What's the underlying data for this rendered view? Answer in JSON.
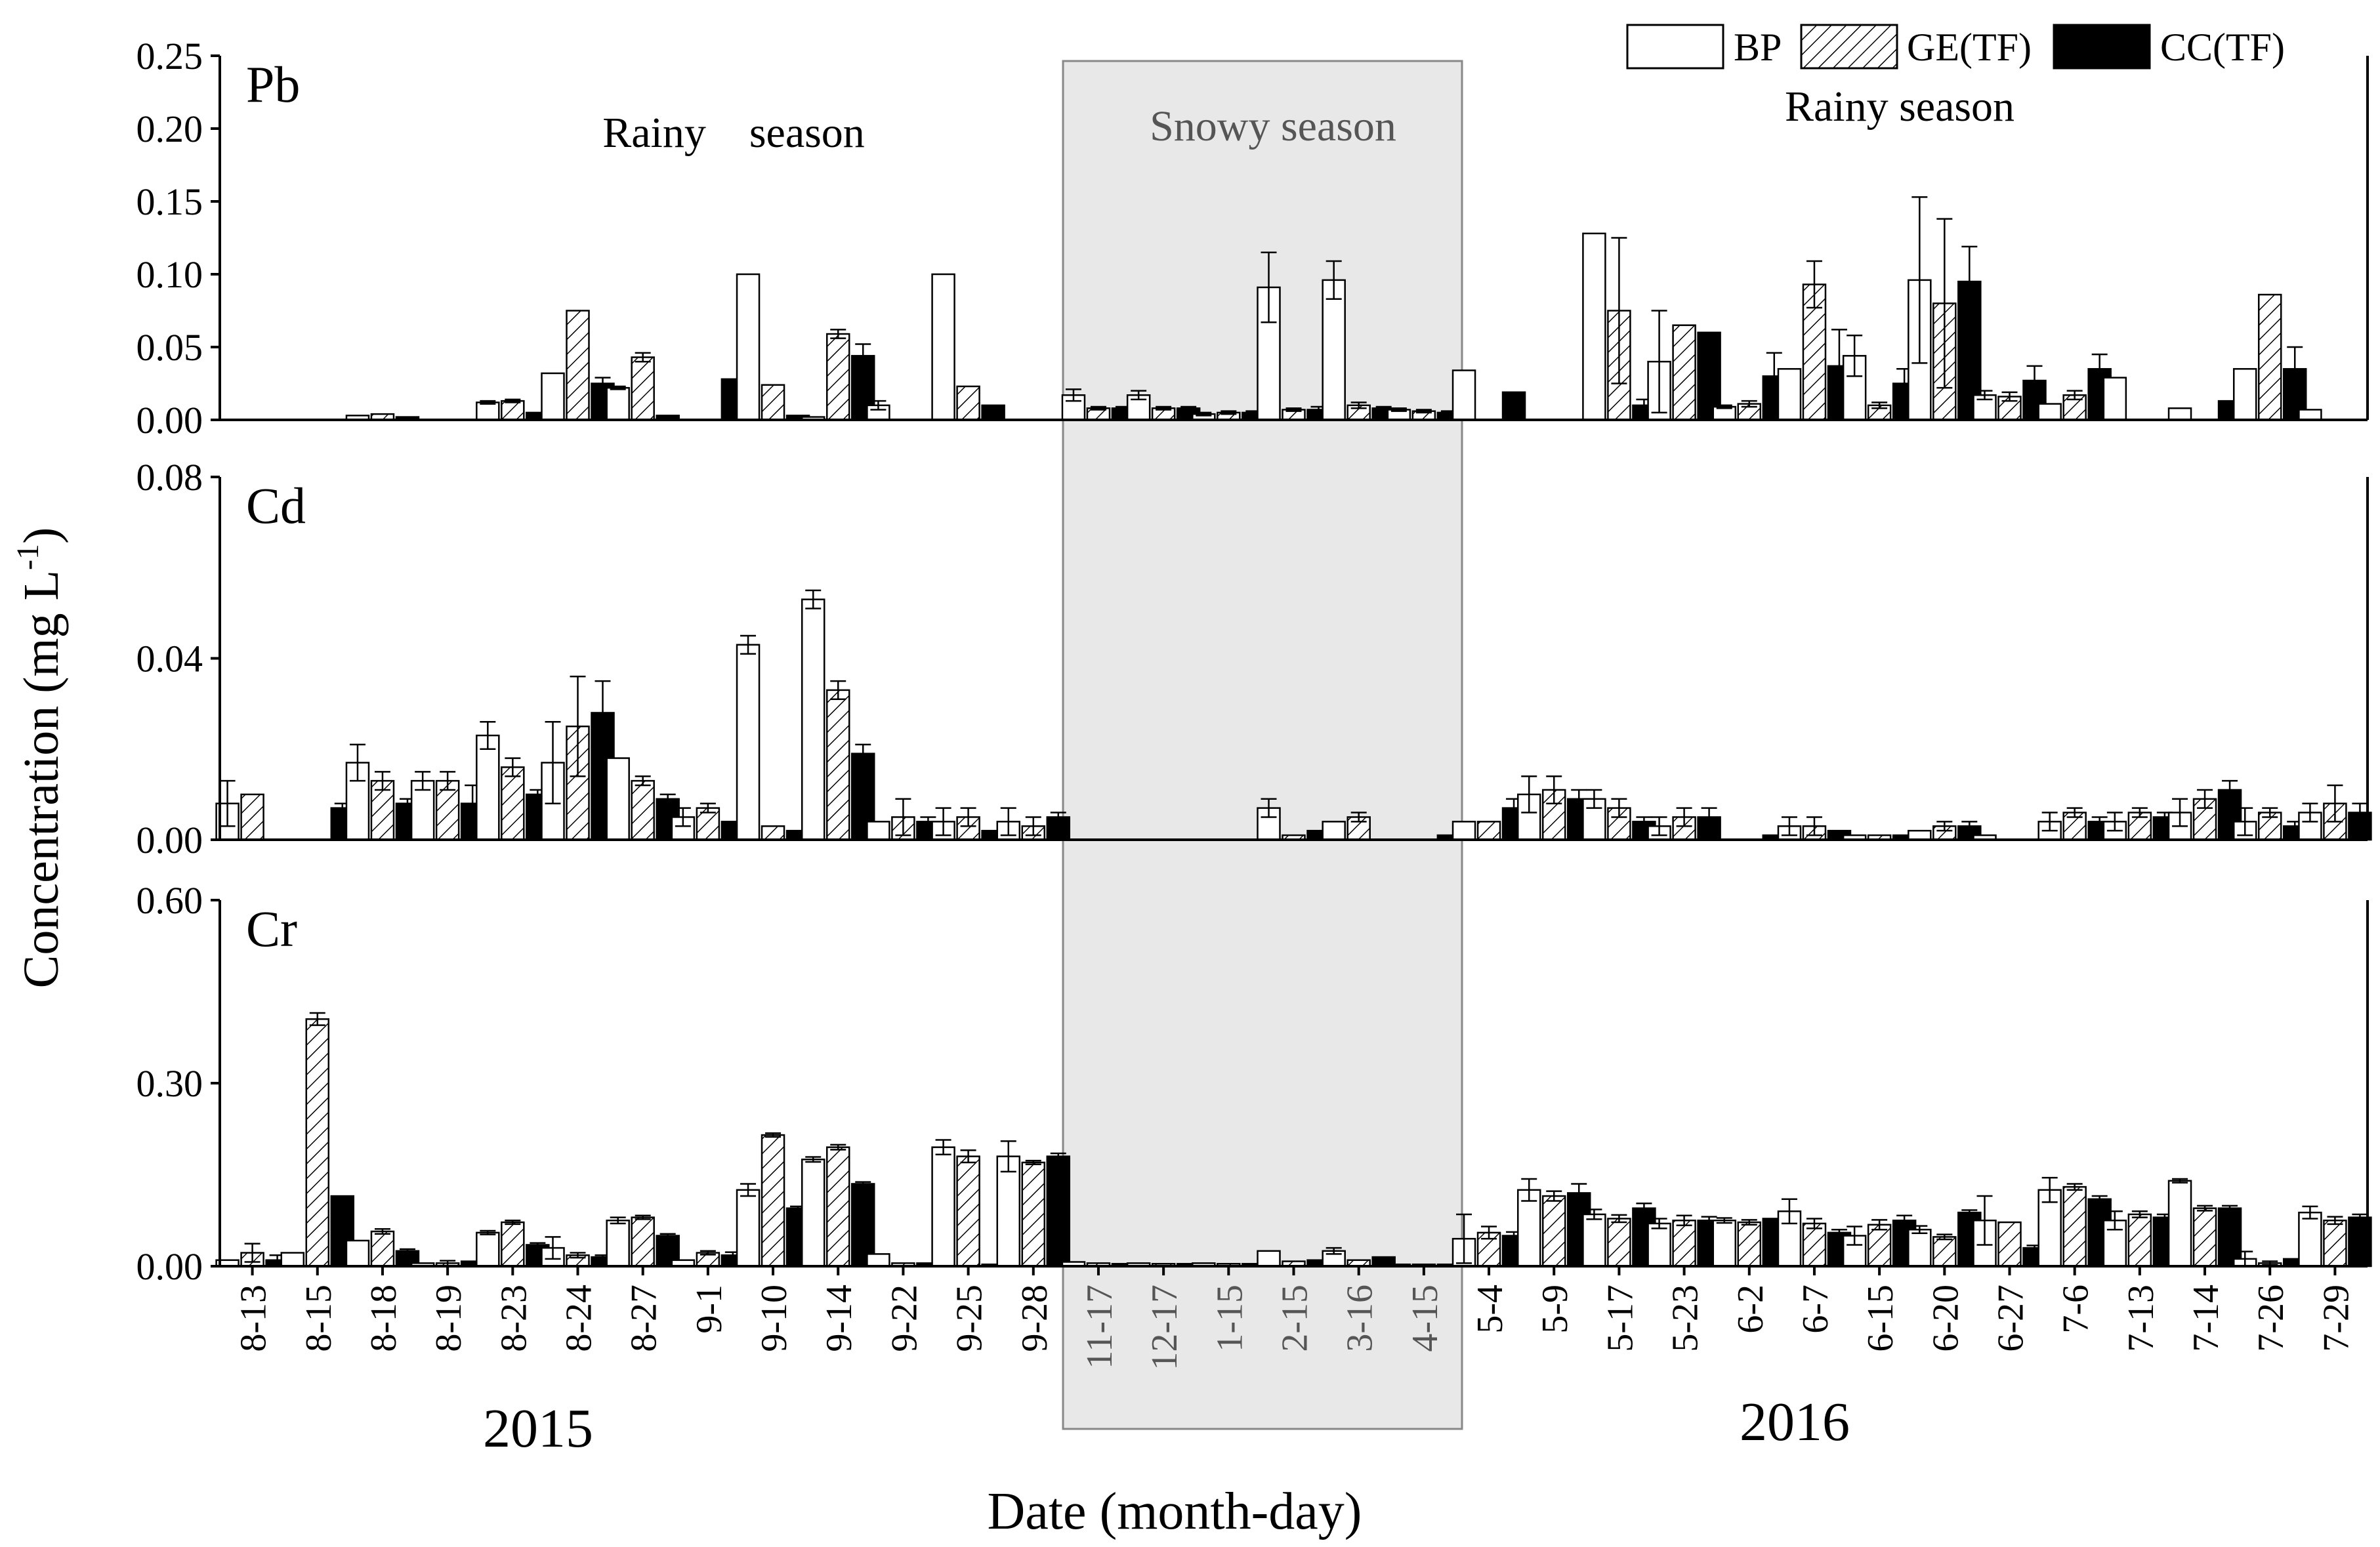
{
  "chart_data": {
    "type": "bar",
    "figure": {
      "ylabel": "Concentration (mg L",
      "ylabel_sup": "-1",
      "ylabel_end": ")",
      "xlabel": "Date (month-day)",
      "year_labels": [
        "2015",
        "2016"
      ],
      "season_labels": {
        "rainy_2015": "Rainy    season",
        "snowy": "Snowy season",
        "rainy_2016": "Rainy season"
      }
    },
    "categories": [
      "8-13",
      "8-15",
      "8-18",
      "8-19",
      "8-23",
      "8-24",
      "8-27",
      "9-1",
      "9-10",
      "9-14",
      "9-22",
      "9-25",
      "9-28",
      "11-17",
      "12-17",
      "1-15",
      "2-15",
      "3-16",
      "4-15",
      "5-4",
      "5-9",
      "5-17",
      "5-23",
      "6-2",
      "6-7",
      "6-15",
      "6-20",
      "6-27",
      "7-6",
      "7-13",
      "7-14",
      "7-26",
      "7-29"
    ],
    "snowy_categories": [
      "11-17",
      "12-17",
      "1-15",
      "2-15",
      "3-16",
      "4-15"
    ],
    "legend": [
      {
        "key": "bp",
        "label": "BP"
      },
      {
        "key": "ge",
        "label": "GE(TF)"
      },
      {
        "key": "cc",
        "label": "CC(TF)"
      }
    ],
    "panels": [
      {
        "name": "Pb",
        "ylim": [
          0,
          0.25
        ],
        "ticks": [
          "0.00",
          "0.05",
          "0.10",
          "0.15",
          "0.20",
          "0.25"
        ],
        "bp": [
          0,
          0,
          0.003,
          0,
          0.012,
          0.032,
          0.022,
          0,
          0.1,
          0.002,
          0.01,
          0.1,
          0,
          0.017,
          0.017,
          0.004,
          0.091,
          0.096,
          0.007,
          0.034,
          0,
          0.128,
          0.04,
          0.009,
          0.035,
          0.044,
          0.096,
          0.017,
          0.011,
          0.029,
          0.008,
          0.035,
          0.007
        ],
        "ge": [
          0,
          0,
          0.004,
          0,
          0.013,
          0.075,
          0.043,
          0,
          0.024,
          0.059,
          0,
          0.023,
          0,
          0.008,
          0.008,
          0.005,
          0.007,
          0.01,
          0.006,
          0,
          0,
          0.075,
          0.065,
          0.011,
          0.093,
          0.01,
          0.08,
          0.016,
          0.017,
          0,
          0,
          0.086,
          0
        ],
        "cc": [
          0,
          0,
          0.002,
          0,
          0.005,
          0.025,
          0.003,
          0.028,
          0.003,
          0.044,
          0,
          0.01,
          0,
          0.008,
          0.008,
          0.005,
          0.007,
          0.008,
          0.005,
          0.019,
          0,
          0.01,
          0.06,
          0.03,
          0.037,
          0.025,
          0.095,
          0.027,
          0.035,
          0,
          0.013,
          0.035,
          0
        ],
        "bp_err": [
          0,
          0,
          0,
          0,
          0.001,
          0,
          0.001,
          0,
          0,
          0,
          0.003,
          0,
          0,
          0.004,
          0.003,
          0.001,
          0.024,
          0.013,
          0.001,
          0,
          0,
          0,
          0.035,
          0.001,
          0,
          0.014,
          0.057,
          0.003,
          0,
          0,
          0,
          0,
          0
        ],
        "ge_err": [
          0,
          0,
          0,
          0,
          0.001,
          0,
          0.003,
          0,
          0,
          0.003,
          0,
          0,
          0,
          0.001,
          0.001,
          0.001,
          0.001,
          0.002,
          0.001,
          0,
          0,
          0.05,
          0,
          0.002,
          0.016,
          0.002,
          0.058,
          0.003,
          0.003,
          0,
          0,
          0,
          0
        ],
        "cc_err": [
          0,
          0,
          0,
          0,
          0,
          0.004,
          0,
          0,
          0,
          0.008,
          0,
          0,
          0,
          0.001,
          0.001,
          0.001,
          0.002,
          0.001,
          0.001,
          0,
          0,
          0.004,
          0,
          0.016,
          0.025,
          0.01,
          0.024,
          0.01,
          0.01,
          0,
          0,
          0.015,
          0
        ]
      },
      {
        "name": "Cd",
        "ylim": [
          0,
          0.08
        ],
        "ticks": [
          "0.00",
          "0.04",
          "0.08"
        ],
        "bp": [
          0.008,
          0,
          0.017,
          0.013,
          0.023,
          0.017,
          0.018,
          0.005,
          0.043,
          0.053,
          0.004,
          0.004,
          0.004,
          0,
          0,
          0,
          0.007,
          0.004,
          0,
          0.004,
          0.01,
          0.009,
          0.003,
          0,
          0.003,
          0.001,
          0.002,
          0.001,
          0.004,
          0.004,
          0.006,
          0.004,
          0.006
        ],
        "ge": [
          0.01,
          0,
          0.013,
          0.013,
          0.016,
          0.025,
          0.013,
          0.007,
          0.003,
          0.033,
          0.005,
          0.005,
          0.003,
          0,
          0,
          0,
          0.001,
          0.005,
          0,
          0.004,
          0.011,
          0.007,
          0.005,
          0,
          0.003,
          0.001,
          0.003,
          0,
          0.006,
          0.006,
          0.009,
          0.006,
          0.008
        ],
        "cc": [
          0,
          0.007,
          0.008,
          0.008,
          0.01,
          0.028,
          0.009,
          0.004,
          0.002,
          0.019,
          0.004,
          0.002,
          0.005,
          0,
          0,
          0,
          0.002,
          0,
          0.001,
          0.007,
          0.009,
          0.004,
          0.005,
          0.001,
          0.002,
          0.001,
          0.003,
          0,
          0.004,
          0.005,
          0.011,
          0.003,
          0.006
        ],
        "bp_err": [
          0.005,
          0,
          0.004,
          0.002,
          0.003,
          0.009,
          0,
          0.002,
          0.002,
          0.002,
          0,
          0.003,
          0.003,
          0,
          0,
          0,
          0.002,
          0,
          0,
          0,
          0.004,
          0.002,
          0.002,
          0,
          0.002,
          0,
          0,
          0,
          0.002,
          0.002,
          0.003,
          0.003,
          0.002
        ],
        "ge_err": [
          0,
          0,
          0.002,
          0.002,
          0.002,
          0.011,
          0.001,
          0.001,
          0,
          0.002,
          0.004,
          0.002,
          0.002,
          0,
          0,
          0,
          0,
          0.001,
          0,
          0,
          0.003,
          0.002,
          0.002,
          0,
          0.002,
          0,
          0.001,
          0,
          0.001,
          0.001,
          0.002,
          0.001,
          0.004
        ],
        "cc_err": [
          0,
          0.001,
          0.001,
          0.004,
          0.001,
          0.007,
          0.001,
          0,
          0,
          0.002,
          0.001,
          0,
          0.001,
          0,
          0,
          0,
          0,
          0,
          0,
          0.002,
          0.002,
          0.001,
          0.002,
          0,
          0,
          0,
          0.001,
          0,
          0.001,
          0.001,
          0.002,
          0.001,
          0.002
        ]
      },
      {
        "name": "Cr",
        "ylim": [
          0,
          0.6
        ],
        "ticks": [
          "0.00",
          "0.30",
          "0.60"
        ],
        "bp": [
          0.01,
          0.022,
          0.042,
          0.005,
          0.055,
          0.03,
          0.075,
          0.01,
          0.125,
          0.175,
          0.02,
          0.195,
          0.18,
          0.007,
          0.005,
          0.005,
          0.025,
          0.025,
          0.003,
          0.045,
          0.125,
          0.085,
          0.07,
          0.075,
          0.09,
          0.05,
          0.06,
          0.075,
          0.125,
          0.075,
          0.14,
          0.012,
          0.088
        ],
        "ge": [
          0.022,
          0.405,
          0.057,
          0.005,
          0.072,
          0.018,
          0.08,
          0.022,
          0.215,
          0.195,
          0.005,
          0.18,
          0.17,
          0.005,
          0.004,
          0.004,
          0.008,
          0.01,
          0.003,
          0.055,
          0.115,
          0.078,
          0.075,
          0.072,
          0.07,
          0.068,
          0.048,
          0.072,
          0.13,
          0.085,
          0.095,
          0.005,
          0.075
        ],
        "cc": [
          0.01,
          0.115,
          0.025,
          0.008,
          0.035,
          0.015,
          0.05,
          0.018,
          0.095,
          0.135,
          0.005,
          0.003,
          0.18,
          0.004,
          0.004,
          0.004,
          0.01,
          0.015,
          0.003,
          0.05,
          0.12,
          0.095,
          0.075,
          0.078,
          0.055,
          0.075,
          0.088,
          0.03,
          0.11,
          0.08,
          0.095,
          0.012,
          0.08
        ],
        "bp_err": [
          0,
          0,
          0,
          0,
          0.003,
          0.018,
          0.005,
          0,
          0.01,
          0.004,
          0,
          0.012,
          0.025,
          0,
          0,
          0,
          0,
          0.005,
          0,
          0.04,
          0.018,
          0.008,
          0.008,
          0.004,
          0.02,
          0.015,
          0.006,
          0.04,
          0.02,
          0.015,
          0.003,
          0.012,
          0.01
        ],
        "ge_err": [
          0.015,
          0.01,
          0.004,
          0.004,
          0.003,
          0.004,
          0.003,
          0.003,
          0.003,
          0.004,
          0,
          0.01,
          0.003,
          0,
          0,
          0,
          0,
          0,
          0,
          0.01,
          0.008,
          0.006,
          0.008,
          0.004,
          0.008,
          0.008,
          0.004,
          0,
          0.005,
          0.005,
          0.004,
          0.003,
          0.006
        ],
        "cc_err": [
          0.008,
          0,
          0.003,
          0,
          0.003,
          0.003,
          0.003,
          0.005,
          0.003,
          0.003,
          0,
          0,
          0.005,
          0,
          0,
          0,
          0,
          0,
          0,
          0.006,
          0.015,
          0.008,
          0.006,
          0,
          0.005,
          0.008,
          0.004,
          0.004,
          0.005,
          0.005,
          0.004,
          0,
          0.005
        ]
      }
    ]
  }
}
